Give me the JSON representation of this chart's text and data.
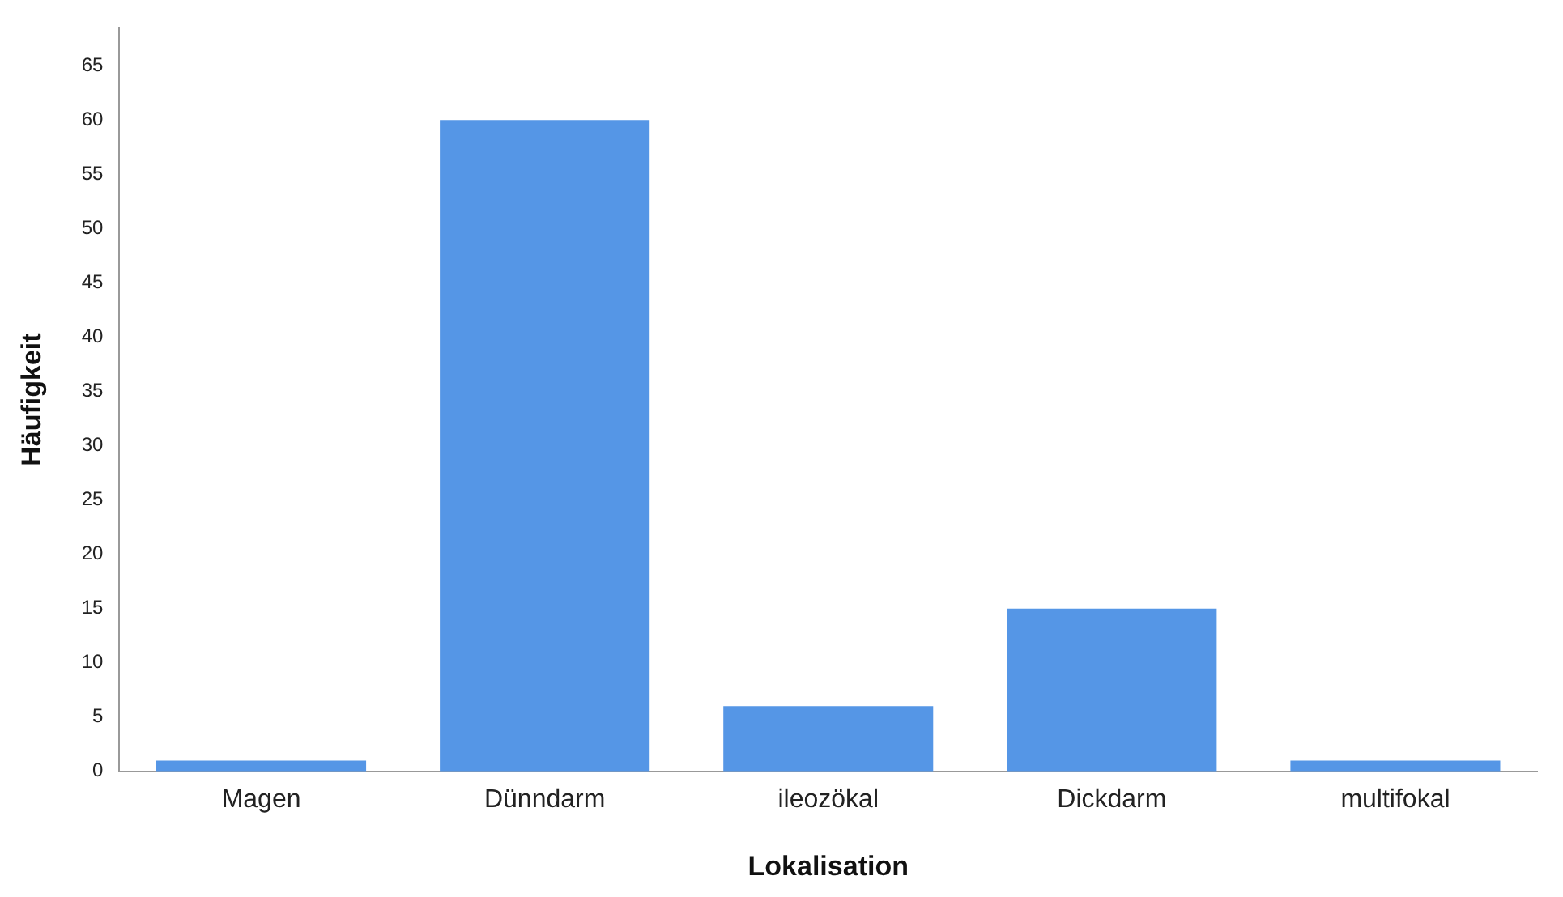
{
  "chart_data": {
    "type": "bar",
    "xlabel": "Lokalisation",
    "ylabel": "Häufigkeit",
    "categories": [
      "Magen",
      "Dünndarm",
      "ileozökal",
      "Dickdarm",
      "multifokal"
    ],
    "values": [
      1,
      60,
      6,
      15,
      1
    ],
    "color": "#5596e6",
    "ylim": [
      0,
      68.5
    ],
    "yticks": [
      0,
      5,
      10,
      15,
      20,
      25,
      30,
      35,
      40,
      45,
      50,
      55,
      60,
      65
    ],
    "grid": false,
    "legend": false
  }
}
